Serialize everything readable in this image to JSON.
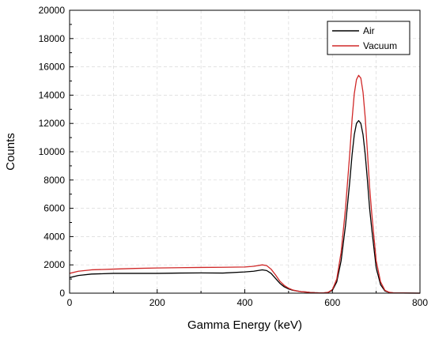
{
  "chart_data": {
    "type": "line",
    "title": "",
    "xlabel": "Gamma Energy (keV)",
    "ylabel": "Counts",
    "xlim": [
      0,
      800
    ],
    "ylim": [
      0,
      20000
    ],
    "xticks": [
      0,
      200,
      400,
      600,
      800
    ],
    "yticks": [
      0,
      2000,
      4000,
      6000,
      8000,
      10000,
      12000,
      14000,
      16000,
      18000,
      20000
    ],
    "grid": true,
    "legend_position": "top-right",
    "series": [
      {
        "name": "Air",
        "color": "#000000",
        "x": [
          0,
          20,
          50,
          100,
          150,
          200,
          250,
          300,
          350,
          400,
          420,
          440,
          450,
          460,
          470,
          480,
          490,
          500,
          510,
          520,
          530,
          540,
          550,
          560,
          570,
          580,
          590,
          600,
          610,
          620,
          630,
          640,
          645,
          650,
          655,
          660,
          665,
          670,
          675,
          680,
          685,
          690,
          700,
          710,
          720,
          730,
          740,
          760,
          800
        ],
        "y": [
          1100,
          1250,
          1350,
          1400,
          1400,
          1400,
          1420,
          1430,
          1420,
          1500,
          1550,
          1650,
          1600,
          1400,
          1050,
          700,
          450,
          300,
          200,
          150,
          100,
          80,
          50,
          30,
          20,
          20,
          50,
          200,
          800,
          2300,
          4800,
          8000,
          9800,
          11200,
          12000,
          12200,
          12000,
          11200,
          9800,
          8000,
          6000,
          4500,
          1800,
          600,
          150,
          50,
          20,
          10,
          0
        ]
      },
      {
        "name": "Vacuum",
        "color": "#d02828",
        "x": [
          0,
          20,
          50,
          100,
          150,
          200,
          250,
          300,
          350,
          400,
          420,
          440,
          450,
          460,
          470,
          480,
          490,
          500,
          510,
          520,
          530,
          540,
          550,
          560,
          570,
          580,
          590,
          600,
          610,
          620,
          630,
          640,
          645,
          650,
          655,
          660,
          665,
          670,
          675,
          680,
          685,
          690,
          700,
          710,
          720,
          730,
          740,
          760,
          800
        ],
        "y": [
          1400,
          1550,
          1650,
          1700,
          1750,
          1780,
          1800,
          1820,
          1830,
          1850,
          1900,
          2000,
          1950,
          1700,
          1300,
          850,
          550,
          350,
          220,
          150,
          100,
          80,
          50,
          30,
          20,
          20,
          60,
          250,
          1000,
          2900,
          6000,
          10000,
          12300,
          14100,
          15100,
          15400,
          15200,
          14200,
          12400,
          10000,
          7500,
          5600,
          2300,
          800,
          200,
          60,
          20,
          10,
          0
        ]
      }
    ]
  }
}
